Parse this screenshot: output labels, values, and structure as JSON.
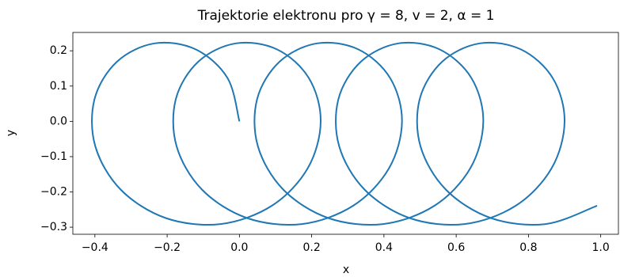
{
  "chart_data": {
    "type": "line",
    "title": "Trajektorie elektronu pro γ = 8, v = 2, α = 1",
    "x_label": "x",
    "y_label": "y",
    "color": "#1f77b4",
    "x": [
      0.0,
      -0.033,
      -0.121,
      -0.235,
      -0.339,
      -0.401,
      -0.399,
      -0.329,
      -0.204,
      -0.052,
      0.09,
      0.189,
      0.225,
      0.192,
      0.104,
      -0.01,
      -0.114,
      -0.176,
      -0.174,
      -0.104,
      0.021,
      0.173,
      0.315,
      0.414,
      0.45,
      0.417,
      0.329,
      0.215,
      0.111,
      0.049,
      0.051,
      0.121,
      0.246,
      0.398,
      0.54,
      0.639,
      0.675,
      0.642,
      0.554,
      0.44,
      0.336,
      0.274,
      0.276,
      0.346,
      0.471,
      0.623,
      0.765,
      0.864,
      0.9,
      0.867,
      0.779,
      0.665,
      0.561,
      0.499,
      0.501,
      0.571,
      0.696,
      0.848,
      0.99
    ],
    "values": [
      0.0,
      0.123,
      0.204,
      0.221,
      0.169,
      0.063,
      -0.07,
      -0.193,
      -0.274,
      -0.291,
      -0.239,
      -0.133,
      0.0,
      0.123,
      0.204,
      0.221,
      0.169,
      0.063,
      -0.07,
      -0.193,
      -0.274,
      -0.291,
      -0.239,
      -0.133,
      0.0,
      0.123,
      0.204,
      0.221,
      0.169,
      0.063,
      -0.07,
      -0.193,
      -0.274,
      -0.291,
      -0.239,
      -0.133,
      0.0,
      0.123,
      0.204,
      0.221,
      0.169,
      0.063,
      -0.07,
      -0.193,
      -0.274,
      -0.291,
      -0.239,
      -0.133,
      0.0,
      0.123,
      0.204,
      0.221,
      0.169,
      0.063,
      -0.07,
      -0.193,
      -0.274,
      -0.291,
      -0.239
    ],
    "xlim": [
      -0.461,
      1.049
    ],
    "ylim": [
      -0.32,
      0.252
    ],
    "xticks": [
      {
        "value": -0.4,
        "label": "−0.4"
      },
      {
        "value": -0.2,
        "label": "−0.2"
      },
      {
        "value": 0.0,
        "label": "0.0"
      },
      {
        "value": 0.2,
        "label": "0.2"
      },
      {
        "value": 0.4,
        "label": "0.4"
      },
      {
        "value": 0.6,
        "label": "0.6"
      },
      {
        "value": 0.8,
        "label": "0.8"
      },
      {
        "value": 1.0,
        "label": "1.0"
      }
    ],
    "yticks": [
      {
        "value": -0.3,
        "label": "−0.3"
      },
      {
        "value": -0.2,
        "label": "−0.2"
      },
      {
        "value": -0.1,
        "label": "−0.1"
      },
      {
        "value": 0.0,
        "label": "0.0"
      },
      {
        "value": 0.1,
        "label": "0.1"
      },
      {
        "value": 0.2,
        "label": "0.2"
      }
    ]
  }
}
